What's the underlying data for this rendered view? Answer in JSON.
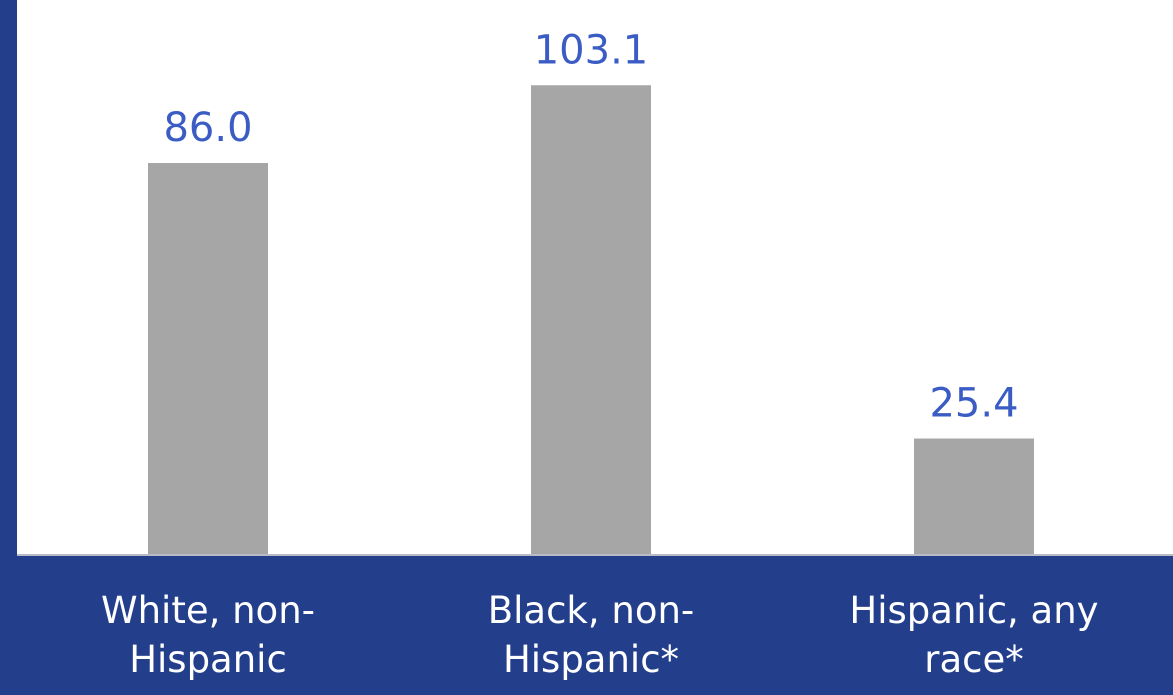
{
  "chart_data": {
    "type": "bar",
    "categories": [
      "White, non-\nHispanic",
      "Black, non-\nHispanic*",
      "Hispanic, any\nrace*"
    ],
    "values": [
      86.0,
      103.1,
      25.4
    ],
    "value_labels": [
      "86.0",
      "103.1",
      "25.4"
    ],
    "title": "",
    "xlabel": "",
    "ylabel": "",
    "ylim": [
      0,
      122
    ],
    "grid": false,
    "legend": "none",
    "colors": {
      "background": "#233e8b",
      "plot_background": "#ffffff",
      "bar": "#a6a6a6",
      "value_label": "#3a5cc4",
      "category_label": "#ffffff"
    }
  }
}
